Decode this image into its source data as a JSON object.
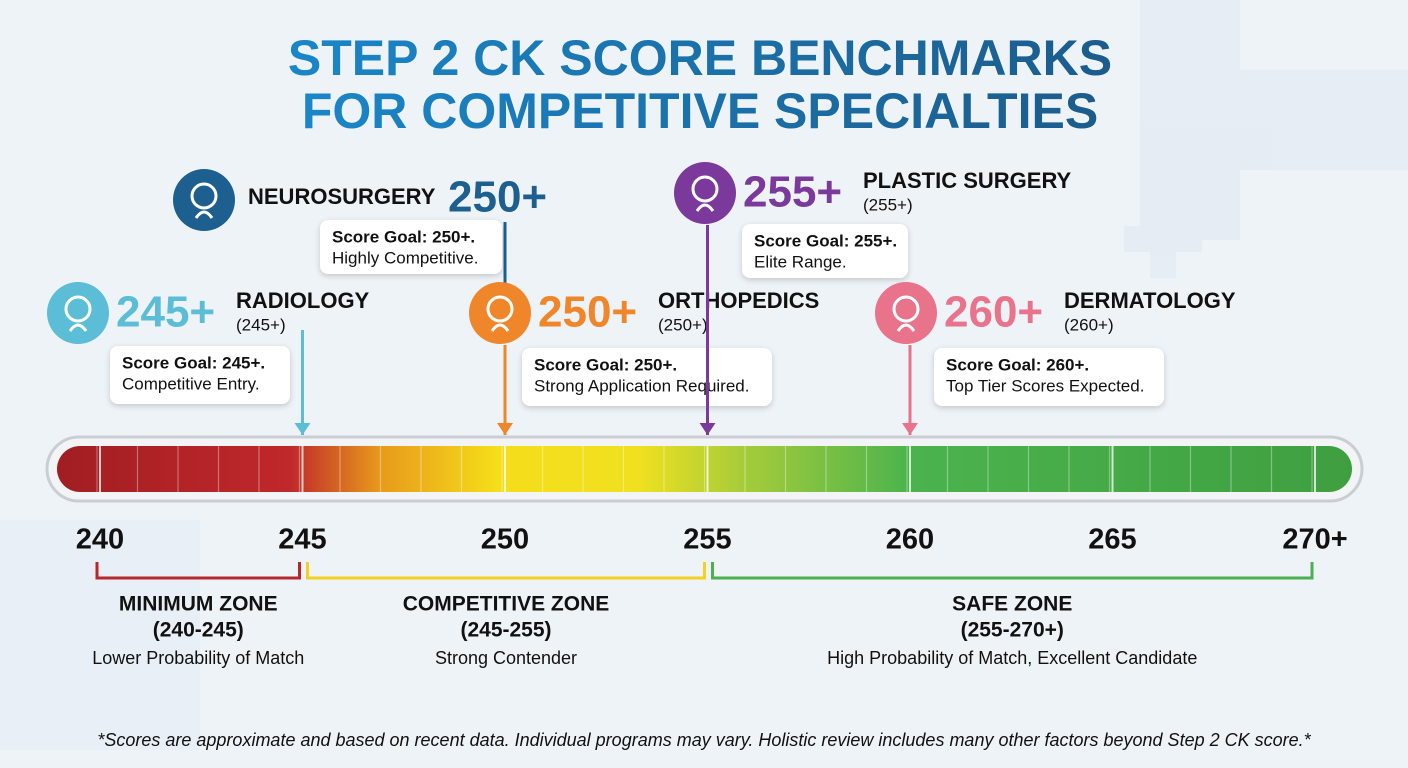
{
  "title": [
    "STEP 2 CK SCORE BENCHMARKS",
    "FOR COMPETITIVE SPECIALTIES"
  ],
  "scale": {
    "lim": [
      240,
      270
    ],
    "ticks": [
      240,
      245,
      250,
      255,
      260,
      265,
      {
        "value": 270,
        "label": "270+"
      }
    ]
  },
  "specialties": [
    {
      "name": "NEUROSURGERY",
      "score": 250,
      "score_label": "250+",
      "goal": "Score Goal: 250+.",
      "note": "Highly Competitive.",
      "color": "#1d5f8f"
    },
    {
      "name": "RADIOLOGY",
      "score": 245,
      "score_label": "245+",
      "sub": "(245+)",
      "goal": "Score Goal: 245+.",
      "note": "Competitive Entry.",
      "color": "#5bbdd6"
    },
    {
      "name": "ORTHOPEDICS",
      "score": 250,
      "score_label": "250+",
      "sub": "(250+)",
      "goal": "Score Goal: 250+.",
      "note": "Strong Application Required.",
      "color": "#f0862a"
    },
    {
      "name": "PLASTIC SURGERY",
      "score": 255,
      "score_label": "255+",
      "sub": "(255+)",
      "goal": "Score Goal: 255+.",
      "note": "Elite Range.",
      "color": "#7b3a9b"
    },
    {
      "name": "DERMATOLOGY",
      "score": 260,
      "score_label": "260+",
      "sub": "(260+)",
      "goal": "Score Goal: 260+.",
      "note": "Top Tier Scores Expected.",
      "color": "#e8738a"
    }
  ],
  "zones": [
    {
      "title": "MINIMUM ZONE",
      "range": "(240-245)",
      "desc": "Lower Probability of Match",
      "start": 240,
      "end": 245,
      "color": "#b5282b"
    },
    {
      "title": "COMPETITIVE ZONE",
      "range": "(245-255)",
      "desc": "Strong Contender",
      "start": 245,
      "end": 255,
      "color": "#f2d21f"
    },
    {
      "title": "SAFE ZONE",
      "range": "(255-270+)",
      "desc": "High Probability of Match, Excellent Candidate",
      "start": 255,
      "end": 270,
      "color": "#4caf50"
    }
  ],
  "footnote": "*Scores are approximate and based on recent data. Individual programs may vary. Holistic review includes many other factors beyond Step 2 CK score.*"
}
